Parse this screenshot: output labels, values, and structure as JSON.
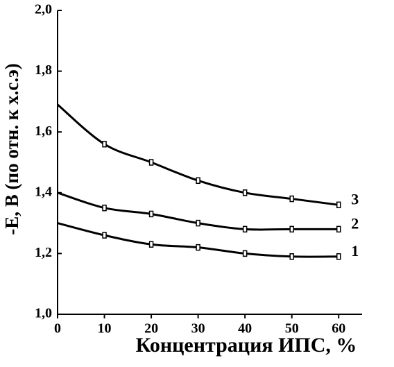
{
  "chart_data": {
    "type": "line",
    "x_label": "Концентрация ИПС, %",
    "y_label": "-E, B (по отн. к х.с.э)",
    "x": [
      0,
      10,
      20,
      30,
      40,
      50,
      60
    ],
    "series": [
      {
        "name": "3",
        "color": "#000000",
        "values": [
          1.69,
          1.56,
          1.5,
          1.44,
          1.4,
          1.38,
          1.36
        ]
      },
      {
        "name": "2",
        "color": "#000000",
        "values": [
          1.4,
          1.35,
          1.33,
          1.3,
          1.28,
          1.28,
          1.28
        ]
      },
      {
        "name": "1",
        "color": "#000000",
        "values": [
          1.3,
          1.26,
          1.23,
          1.22,
          1.2,
          1.19,
          1.19
        ]
      }
    ],
    "xlim": [
      0,
      65
    ],
    "xticks": [
      0,
      10,
      20,
      30,
      40,
      50,
      60
    ],
    "ylim": [
      1.0,
      2.0
    ],
    "yticks": [
      {
        "value": 1.0,
        "label": "1,0"
      },
      {
        "value": 1.2,
        "label": "1,2"
      },
      {
        "value": 1.4,
        "label": "1,4"
      },
      {
        "value": 1.6,
        "label": "1,6"
      },
      {
        "value": 1.8,
        "label": "1,8"
      },
      {
        "value": 2.0,
        "label": "2,0"
      }
    ]
  }
}
